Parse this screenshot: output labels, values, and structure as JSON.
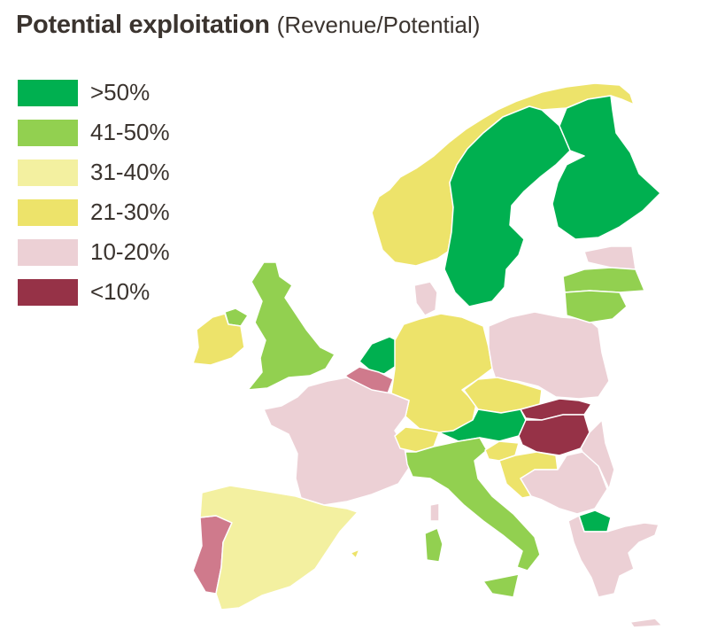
{
  "title": "Potential exploitation",
  "subtitle": "(Revenue/Potential)",
  "legend": [
    {
      "label": ">50%",
      "color": "#00b050"
    },
    {
      "label": "41-50%",
      "color": "#92d050"
    },
    {
      "label": "31-40%",
      "color": "#f3f0a0"
    },
    {
      "label": "21-30%",
      "color": "#ede36a"
    },
    {
      "label": "10-20%",
      "color": "#ecd0d5"
    },
    {
      "label": "<10%",
      "color": "#963247"
    }
  ],
  "bands": {
    "gt50": "#00b050",
    "b41_50": "#92d050",
    "b31_40": "#f3f0a0",
    "b21_30": "#ede36a",
    "b10_20": "#ecd0d5",
    "lt10": "#963247",
    "mid10_20": "#cf7a8c"
  }
}
